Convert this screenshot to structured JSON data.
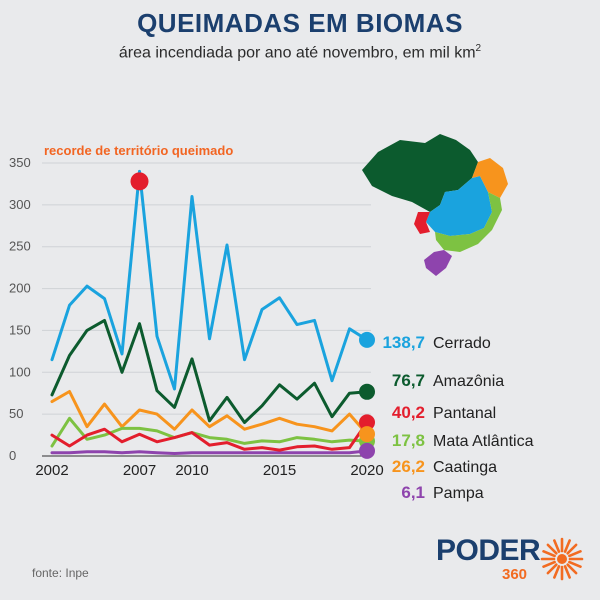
{
  "header": {
    "title": "QUEIMADAS EM BIOMAS",
    "subtitle": "área incendiada por ano até novembro, em mil km",
    "subtitle_sup": "2"
  },
  "source": "fonte: Inpe",
  "logo": {
    "word": "PODER",
    "number": "360",
    "color": "#f26b21"
  },
  "chart_data": {
    "type": "line",
    "x": [
      2002,
      2003,
      2004,
      2005,
      2006,
      2007,
      2008,
      2009,
      2010,
      2011,
      2012,
      2013,
      2014,
      2015,
      2016,
      2017,
      2018,
      2019,
      2020
    ],
    "xticks": [
      "2002",
      "2007",
      "2010",
      "2015",
      "2020"
    ],
    "xtick_values": [
      2002,
      2007,
      2010,
      2015,
      2020
    ],
    "yticks": [
      "0",
      "50",
      "100",
      "150",
      "200",
      "250",
      "300",
      "350"
    ],
    "ylim": [
      0,
      350
    ],
    "annotation": {
      "text": "recorde de território queimado",
      "x": 2007,
      "y": 340,
      "color": "#f26522"
    },
    "series": [
      {
        "name": "Cerrado",
        "label": "138,7",
        "color": "#1aa3de",
        "values": [
          115,
          180,
          203,
          188,
          122,
          340,
          143,
          80,
          310,
          140,
          252,
          115,
          175,
          189,
          157,
          162,
          90,
          152,
          138.7
        ]
      },
      {
        "name": "Amazônia",
        "label": "76,7",
        "color": "#0c5b2e",
        "values": [
          73,
          120,
          150,
          162,
          100,
          158,
          78,
          58,
          116,
          42,
          70,
          40,
          60,
          85,
          68,
          87,
          47,
          75,
          76.7
        ]
      },
      {
        "name": "Pantanal",
        "label": "40,2",
        "color": "#e31e2d",
        "values": [
          25,
          12,
          25,
          32,
          17,
          26,
          17,
          22,
          28,
          13,
          16,
          8,
          10,
          7,
          11,
          12,
          8,
          10,
          40.2
        ]
      },
      {
        "name": "Mata Atlântica",
        "label": "17,8",
        "color": "#7dc242",
        "values": [
          12,
          45,
          20,
          25,
          33,
          33,
          30,
          22,
          28,
          22,
          20,
          15,
          18,
          17,
          22,
          20,
          17,
          19,
          17.8
        ]
      },
      {
        "name": "Caatinga",
        "label": "26,2",
        "color": "#f7941d",
        "values": [
          65,
          77,
          35,
          62,
          35,
          55,
          50,
          32,
          55,
          35,
          48,
          32,
          38,
          45,
          38,
          35,
          30,
          50,
          26.2
        ]
      },
      {
        "name": "Pampa",
        "label": "6,1",
        "color": "#8e44ad",
        "values": [
          4,
          4,
          5,
          5,
          4,
          5,
          4,
          3,
          4,
          4,
          4,
          4,
          4,
          4,
          4,
          4,
          4,
          4,
          6.1
        ]
      }
    ]
  }
}
